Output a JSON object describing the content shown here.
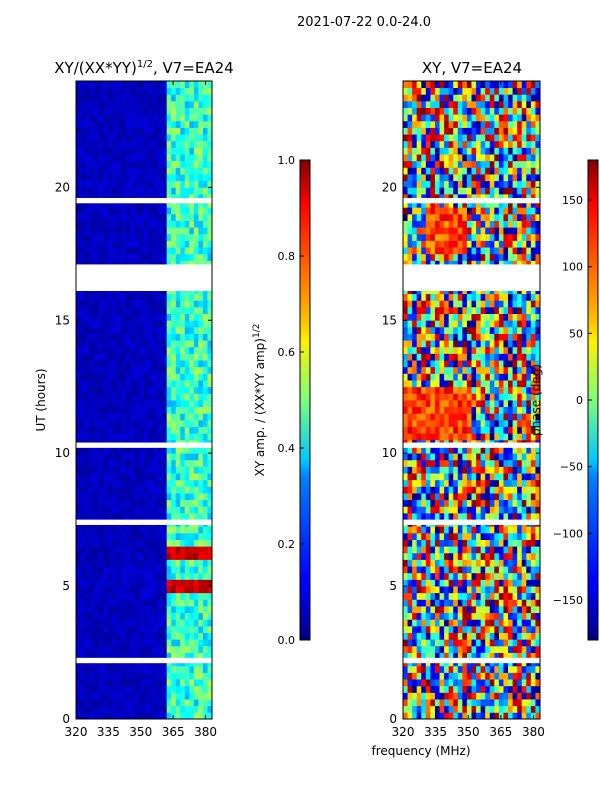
{
  "figure_title": "2021-07-22 0.0-24.0",
  "shared_xlabel": "frequency (MHz)",
  "chart_data": [
    {
      "type": "heatmap",
      "title_prefix": "XY/(XX*YY)",
      "title_sup": "1/2",
      "title_suffix": ", V7=EA24",
      "xlabel": "",
      "ylabel": "UT (hours)",
      "xlim": [
        320,
        383
      ],
      "ylim": [
        0,
        24
      ],
      "xticks": [
        320,
        335,
        350,
        365,
        380
      ],
      "yticks": [
        0,
        5,
        10,
        15,
        20
      ],
      "colorbar": {
        "label_prefix": "XY amp. / (XX*YY amp)",
        "label_sup": "1/2",
        "range": [
          0.0,
          1.0
        ],
        "ticks": [
          "0.0",
          "0.2",
          "0.4",
          "0.6",
          "0.8",
          "1.0"
        ],
        "colormap": "jet"
      },
      "data_gaps_hours": [
        [
          16.1,
          17.1
        ],
        [
          19.4,
          19.6
        ],
        [
          7.3,
          7.5
        ],
        [
          10.2,
          10.4
        ],
        [
          2.1,
          2.3
        ]
      ],
      "notes": "low amplitude (~0.05) below 363 MHz; ~0.3-0.5 in 363-382 MHz band; high (~0.9) near 5 and 6 h"
    },
    {
      "type": "heatmap",
      "title": "XY, V7=EA24",
      "xlabel": "",
      "ylabel": "",
      "xlim": [
        320,
        383
      ],
      "ylim": [
        0,
        24
      ],
      "xticks": [
        320,
        335,
        350,
        365,
        380
      ],
      "yticks": [
        0,
        5,
        10,
        15,
        20
      ],
      "colorbar": {
        "label": "phase (deg)",
        "range": [
          -180,
          180
        ],
        "ticks": [
          "−150",
          "−100",
          "−50",
          "0",
          "50",
          "100",
          "150"
        ],
        "colormap": "jet"
      },
      "data_gaps_hours": [
        [
          16.1,
          17.1
        ],
        [
          19.4,
          19.6
        ],
        [
          7.3,
          7.5
        ],
        [
          10.2,
          10.4
        ],
        [
          2.1,
          2.3
        ]
      ],
      "notes": "phase values spread across -180..180 deg; warm bands near 11-12 h and 18-19 h"
    }
  ]
}
